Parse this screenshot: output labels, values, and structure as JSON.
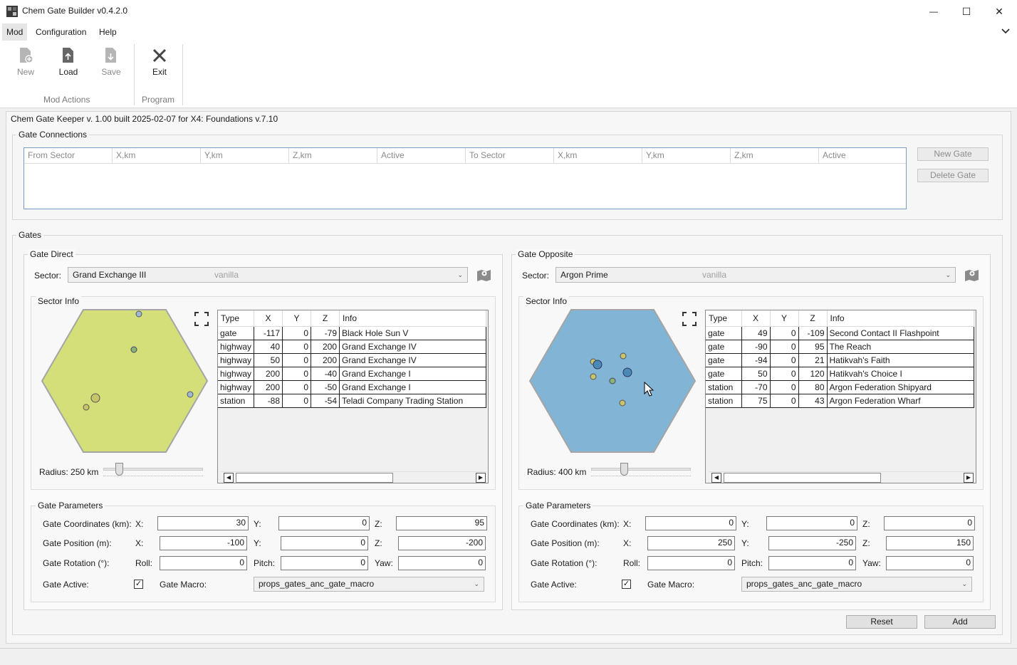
{
  "window": {
    "title": "Chem Gate Builder v0.4.2.0",
    "controls": {
      "minimize": "—",
      "maximize": "☐",
      "close": "✕"
    }
  },
  "menu": {
    "items": [
      "Mod",
      "Configuration",
      "Help"
    ],
    "collapse_icon": "chevron-down"
  },
  "ribbon": {
    "groups": [
      {
        "label": "Mod Actions",
        "buttons": [
          {
            "label": "New",
            "icon": "new-file-icon",
            "enabled": false
          },
          {
            "label": "Load",
            "icon": "load-file-icon",
            "enabled": true
          },
          {
            "label": "Save",
            "icon": "save-file-icon",
            "enabled": false
          }
        ]
      },
      {
        "label": "Program",
        "buttons": [
          {
            "label": "Exit",
            "icon": "close-x-icon",
            "enabled": true
          }
        ]
      }
    ]
  },
  "info_line": "Chem Gate Keeper v. 1.00 built 2025-02-07 for X4: Foundations v.7.10",
  "connections": {
    "title": "Gate Connections",
    "columns": [
      "From Sector",
      "X,km",
      "Y,km",
      "Z,km",
      "Active",
      "To Sector",
      "X,km",
      "Y,km",
      "Z,km",
      "Active"
    ],
    "new_gate": "New Gate",
    "delete_gate": "Delete Gate"
  },
  "gates": {
    "title": "Gates",
    "direct": {
      "title": "Gate Direct",
      "sector_label": "Sector:",
      "sector": "Grand Exchange III",
      "sector_source": "vanilla",
      "sector_info_title": "Sector Info",
      "hex_color": "#d4df7a",
      "radius_label": "Radius: 250 km",
      "radius_km": 250,
      "columns": [
        "Type",
        "X",
        "Y",
        "Z",
        "Info"
      ],
      "rows": [
        [
          "gate",
          "-117",
          "0",
          "-79",
          "Black Hole Sun V"
        ],
        [
          "highway",
          "40",
          "0",
          "200",
          "Grand Exchange IV"
        ],
        [
          "highway",
          "50",
          "0",
          "200",
          "Grand Exchange IV"
        ],
        [
          "highway",
          "200",
          "0",
          "-40",
          "Grand Exchange I"
        ],
        [
          "highway",
          "200",
          "0",
          "-50",
          "Grand Exchange I"
        ],
        [
          "station",
          "-88",
          "0",
          "-54",
          "Teladi Company Trading Station"
        ]
      ],
      "params": {
        "title": "Gate Parameters",
        "coords_label": "Gate Coordinates (km):",
        "pos_label": "Gate Position (m):",
        "rot_label": "Gate Rotation (°):",
        "active_label": "Gate Active:",
        "macro_label": "Gate Macro:",
        "x": "X:",
        "y": "Y:",
        "z": "Z:",
        "roll": "Roll:",
        "pitch": "Pitch:",
        "yaw": "Yaw:",
        "coord_x": "30",
        "coord_y": "0",
        "coord_z": "95",
        "pos_x": "-100",
        "pos_y": "0",
        "pos_z": "-200",
        "rot_roll": "0",
        "rot_pitch": "0",
        "rot_yaw": "0",
        "active": "✓",
        "macro": "props_gates_anc_gate_macro"
      }
    },
    "opposite": {
      "title": "Gate Opposite",
      "sector_label": "Sector:",
      "sector": "Argon Prime",
      "sector_source": "vanilla",
      "sector_info_title": "Sector Info",
      "hex_color": "#82b4d6",
      "radius_label": "Radius: 400 km",
      "radius_km": 400,
      "columns": [
        "Type",
        "X",
        "Y",
        "Z",
        "Info"
      ],
      "rows": [
        [
          "gate",
          "49",
          "0",
          "-109",
          "Second Contact II Flashpoint"
        ],
        [
          "gate",
          "-90",
          "0",
          "95",
          "The Reach"
        ],
        [
          "gate",
          "-94",
          "0",
          "21",
          "Hatikvah's Faith"
        ],
        [
          "gate",
          "50",
          "0",
          "120",
          "Hatikvah's Choice I"
        ],
        [
          "station",
          "-70",
          "0",
          "80",
          "Argon Federation Shipyard"
        ],
        [
          "station",
          "75",
          "0",
          "43",
          "Argon Federation Wharf"
        ]
      ],
      "params": {
        "title": "Gate Parameters",
        "coords_label": "Gate Coordinates (km):",
        "pos_label": "Gate Position (m):",
        "rot_label": "Gate Rotation (°):",
        "active_label": "Gate Active:",
        "macro_label": "Gate Macro:",
        "x": "X:",
        "y": "Y:",
        "z": "Z:",
        "roll": "Roll:",
        "pitch": "Pitch:",
        "yaw": "Yaw:",
        "coord_x": "0",
        "coord_y": "0",
        "coord_z": "0",
        "pos_x": "250",
        "pos_y": "-250",
        "pos_z": "150",
        "rot_roll": "0",
        "rot_pitch": "0",
        "rot_yaw": "0",
        "active": "✓",
        "macro": "props_gates_anc_gate_macro"
      }
    },
    "reset": "Reset",
    "add": "Add"
  }
}
